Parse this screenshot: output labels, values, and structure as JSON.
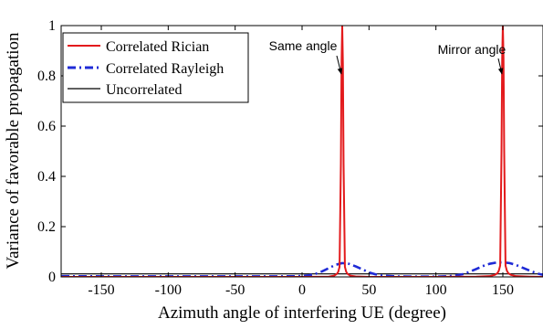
{
  "chart_data": {
    "type": "line",
    "title": "",
    "xlabel": "Azimuth angle of interfering UE (degree)",
    "ylabel": "Variance of favorable propagation",
    "xlim": [
      -180,
      180
    ],
    "ylim": [
      0,
      1
    ],
    "xticks": [
      -150,
      -100,
      -50,
      0,
      50,
      100,
      150
    ],
    "yticks": [
      0,
      0.2,
      0.4,
      0.6,
      0.8,
      1
    ],
    "xtick_labels": [
      "-150",
      "-100",
      "-50",
      "0",
      "50",
      "100",
      "150"
    ],
    "ytick_labels": [
      "0",
      "0.2",
      "0.4",
      "0.6",
      "0.8",
      "1"
    ],
    "grid": false,
    "legend_position": "top-left",
    "series": [
      {
        "name": "Correlated Rician",
        "color": "#e31a1c",
        "style": "solid",
        "x": [
          -180,
          0,
          20,
          24,
          26,
          27,
          28,
          29,
          29.5,
          30,
          30.5,
          31,
          32,
          33,
          34,
          36,
          40,
          50,
          100,
          130,
          140,
          144,
          146,
          147,
          148,
          149,
          149.5,
          150,
          150.5,
          151,
          152,
          153,
          154,
          156,
          160,
          170,
          180
        ],
        "y": [
          0.0,
          0.0,
          0.001,
          0.005,
          0.012,
          0.02,
          0.04,
          0.45,
          0.85,
          1.0,
          0.85,
          0.45,
          0.04,
          0.02,
          0.012,
          0.005,
          0.002,
          0.0,
          0.0,
          0.001,
          0.003,
          0.008,
          0.015,
          0.025,
          0.045,
          0.5,
          0.87,
          1.0,
          0.87,
          0.5,
          0.045,
          0.025,
          0.015,
          0.008,
          0.003,
          0.001,
          0.0
        ]
      },
      {
        "name": "Correlated Rayleigh",
        "color": "#1f2bd6",
        "style": "dashdot",
        "x": [
          -180,
          -140,
          -100,
          -50,
          -20,
          0,
          5,
          10,
          15,
          20,
          25,
          30,
          35,
          40,
          45,
          50,
          55,
          60,
          70,
          80,
          100,
          110,
          115,
          120,
          125,
          130,
          135,
          140,
          145,
          150,
          155,
          160,
          165,
          170,
          175,
          180
        ],
        "y": [
          0.003,
          0.002,
          0.002,
          0.002,
          0.002,
          0.003,
          0.006,
          0.012,
          0.022,
          0.035,
          0.048,
          0.055,
          0.052,
          0.042,
          0.03,
          0.018,
          0.01,
          0.005,
          0.002,
          0.001,
          0.001,
          0.003,
          0.006,
          0.011,
          0.02,
          0.031,
          0.043,
          0.052,
          0.057,
          0.058,
          0.055,
          0.047,
          0.036,
          0.025,
          0.015,
          0.008
        ]
      },
      {
        "name": "Uncorrelated",
        "color": "#000000",
        "style": "solid",
        "x": [
          -180,
          180
        ],
        "y": [
          0.012,
          0.012
        ]
      }
    ],
    "annotations": [
      {
        "text": "Same angle",
        "x": 30,
        "y": 0.8
      },
      {
        "text": "Mirror angle",
        "x": 150,
        "y": 0.8
      }
    ]
  }
}
